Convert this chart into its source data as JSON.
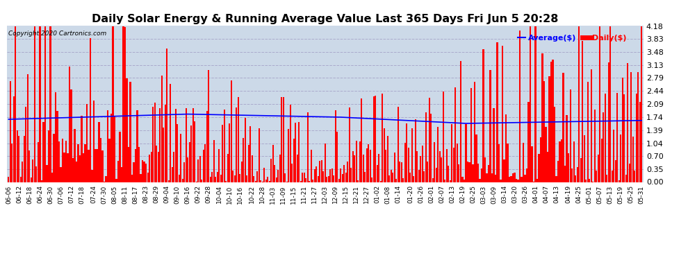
{
  "title": "Daily Solar Energy & Running Average Value Last 365 Days Fri Jun 5 20:28",
  "title_fontsize": 11.5,
  "copyright_text": "Copyright 2020 Cartronics.com",
  "legend_avg": "Average($)",
  "legend_daily": "Daily($)",
  "background_color": "#ffffff",
  "plot_bg_color": "#ccd9e8",
  "bar_color": "#ff0000",
  "avg_line_color": "#0000ff",
  "grid_color": "#aaaacc",
  "ylim": [
    0.0,
    4.18
  ],
  "yticks": [
    0.0,
    0.35,
    0.7,
    1.04,
    1.39,
    1.74,
    2.09,
    2.44,
    2.79,
    3.13,
    3.48,
    3.83,
    4.18
  ],
  "x_labels": [
    "06-06",
    "06-12",
    "06-18",
    "06-24",
    "06-30",
    "07-06",
    "07-12",
    "07-18",
    "07-24",
    "07-30",
    "08-05",
    "08-11",
    "08-17",
    "08-23",
    "08-29",
    "09-04",
    "09-10",
    "09-16",
    "09-22",
    "09-28",
    "10-04",
    "10-10",
    "10-16",
    "10-22",
    "10-28",
    "11-03",
    "11-09",
    "11-15",
    "11-21",
    "11-27",
    "12-03",
    "12-09",
    "12-15",
    "12-21",
    "12-27",
    "01-02",
    "01-08",
    "01-14",
    "01-20",
    "01-26",
    "02-01",
    "02-07",
    "02-13",
    "02-19",
    "02-25",
    "03-03",
    "03-09",
    "03-14",
    "03-20",
    "03-26",
    "04-01",
    "04-07",
    "04-13",
    "04-19",
    "04-25",
    "05-01",
    "05-07",
    "05-13",
    "05-19",
    "05-25",
    "05-31"
  ],
  "num_bars": 365
}
